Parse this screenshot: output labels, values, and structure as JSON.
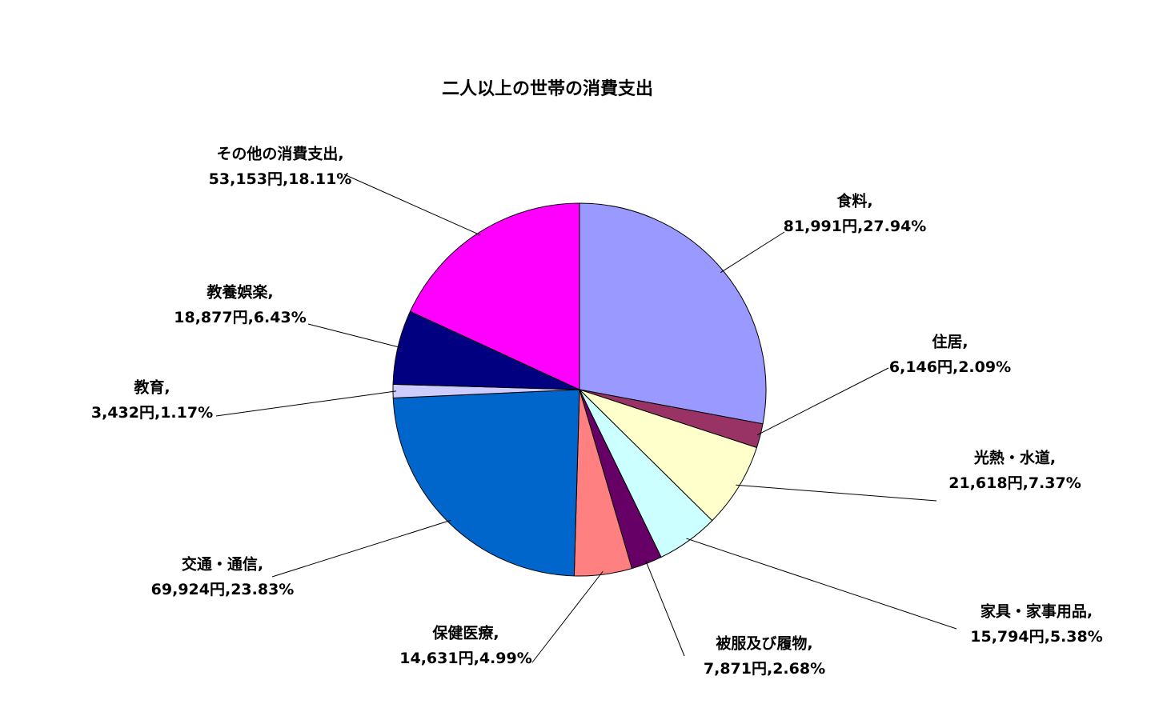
{
  "chart_data": {
    "type": "pie",
    "title": "二人以上の世帯の消費支出",
    "categories": [
      "食料,",
      "住居,",
      "光熱・水道,",
      "家具・家事用品,",
      "被服及び履物,",
      "保健医療,",
      "交通・通信,",
      "教育,",
      "教養娯楽,",
      "その他の消費支出,"
    ],
    "values": [
      81991,
      6146,
      21618,
      15794,
      7871,
      14631,
      69924,
      3432,
      18877,
      53153
    ],
    "value_labels": [
      "81,991円,",
      "6,146円,",
      "21,618円,",
      "15,794円,",
      "7,871円,",
      "14,631円,",
      "69,924円,",
      "3,432円,",
      "18,877円,",
      "53,153円,"
    ],
    "percent_labels": [
      "27.94%",
      "2.09%",
      "7.37%",
      "5.38%",
      "2.68%",
      "4.99%",
      "23.83%",
      "1.17%",
      "6.43%",
      "18.11%"
    ],
    "colors": [
      "#9999ff",
      "#993366",
      "#ffffcc",
      "#ccffff",
      "#660066",
      "#ff8080",
      "#0066cc",
      "#ccccff",
      "#000080",
      "#ff00ff"
    ]
  }
}
